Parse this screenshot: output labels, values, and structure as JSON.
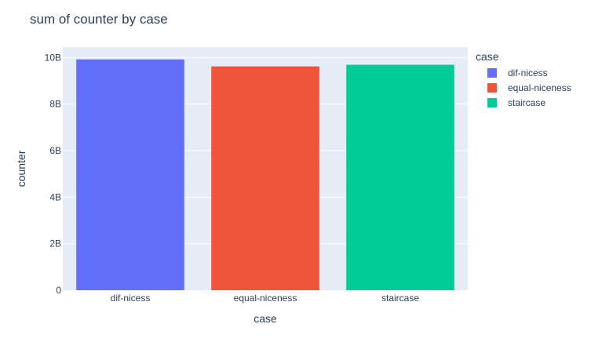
{
  "chart_data": {
    "type": "bar",
    "title": "sum of counter by case",
    "xlabel": "case",
    "ylabel": "counter",
    "categories": [
      "dif-nicess",
      "equal-niceness",
      "staircase"
    ],
    "values": [
      9920000000,
      9620000000,
      9690000000
    ],
    "ylim": [
      0,
      10450000000
    ],
    "y_ticks": [
      {
        "value": 0,
        "label": "0"
      },
      {
        "value": 2000000000,
        "label": "2B"
      },
      {
        "value": 4000000000,
        "label": "4B"
      },
      {
        "value": 6000000000,
        "label": "6B"
      },
      {
        "value": 8000000000,
        "label": "8B"
      },
      {
        "value": 10000000000,
        "label": "10B"
      }
    ],
    "colors": [
      "#636efa",
      "#ef553b",
      "#00cc96"
    ],
    "plot_background": "#e5ecf6",
    "gridline_color": "#ffffff",
    "grid": true,
    "legend": {
      "title": "case",
      "placement": "right",
      "entries": [
        "dif-nicess",
        "equal-niceness",
        "staircase"
      ]
    }
  }
}
